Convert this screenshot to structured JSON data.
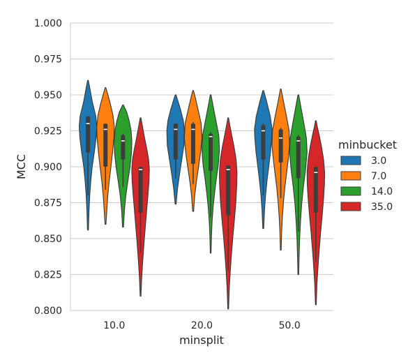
{
  "chart_data": {
    "type": "violin",
    "xlabel": "minsplit",
    "ylabel": "MCC",
    "ylim": [
      0.8,
      1.0
    ],
    "yticks": [
      "0.800",
      "0.825",
      "0.850",
      "0.875",
      "0.900",
      "0.925",
      "0.950",
      "0.975",
      "1.000"
    ],
    "categories": [
      "10.0",
      "20.0",
      "50.0"
    ],
    "grid": "horizontal",
    "legend": {
      "title": "minbucket",
      "position": "right"
    },
    "series": [
      {
        "name": "3.0",
        "color": "#1f77b4",
        "groups": [
          {
            "min": 0.856,
            "max": 0.96,
            "q1": 0.91,
            "median": 0.93,
            "q3": 0.935,
            "wlo": 0.88,
            "whi": 0.935,
            "shape": [
              [
                0.856,
                0.05
              ],
              [
                0.87,
                0.12
              ],
              [
                0.88,
                0.2
              ],
              [
                0.89,
                0.32
              ],
              [
                0.9,
                0.48
              ],
              [
                0.91,
                0.72
              ],
              [
                0.92,
                0.92
              ],
              [
                0.928,
                1.0
              ],
              [
                0.935,
                0.9
              ],
              [
                0.945,
                0.5
              ],
              [
                0.955,
                0.2
              ],
              [
                0.96,
                0.04
              ]
            ]
          },
          {
            "min": 0.874,
            "max": 0.95,
            "q1": 0.905,
            "median": 0.926,
            "q3": 0.93,
            "wlo": 0.892,
            "whi": 0.93,
            "shape": [
              [
                0.874,
                0.05
              ],
              [
                0.885,
                0.22
              ],
              [
                0.895,
                0.45
              ],
              [
                0.905,
                0.7
              ],
              [
                0.915,
                0.95
              ],
              [
                0.925,
                1.0
              ],
              [
                0.932,
                0.88
              ],
              [
                0.94,
                0.55
              ],
              [
                0.946,
                0.25
              ],
              [
                0.95,
                0.04
              ]
            ]
          },
          {
            "min": 0.857,
            "max": 0.953,
            "q1": 0.905,
            "median": 0.925,
            "q3": 0.929,
            "wlo": 0.88,
            "whi": 0.93,
            "shape": [
              [
                0.857,
                0.05
              ],
              [
                0.87,
                0.14
              ],
              [
                0.88,
                0.26
              ],
              [
                0.89,
                0.42
              ],
              [
                0.9,
                0.62
              ],
              [
                0.91,
                0.82
              ],
              [
                0.92,
                0.96
              ],
              [
                0.926,
                1.0
              ],
              [
                0.935,
                0.8
              ],
              [
                0.945,
                0.4
              ],
              [
                0.953,
                0.04
              ]
            ]
          }
        ]
      },
      {
        "name": "7.0",
        "color": "#ff7f0e",
        "groups": [
          {
            "min": 0.86,
            "max": 0.955,
            "q1": 0.9,
            "median": 0.926,
            "q3": 0.93,
            "wlo": 0.884,
            "whi": 0.93,
            "shape": [
              [
                0.86,
                0.05
              ],
              [
                0.87,
                0.15
              ],
              [
                0.88,
                0.26
              ],
              [
                0.89,
                0.42
              ],
              [
                0.9,
                0.62
              ],
              [
                0.91,
                0.8
              ],
              [
                0.92,
                0.96
              ],
              [
                0.928,
                1.0
              ],
              [
                0.936,
                0.85
              ],
              [
                0.945,
                0.5
              ],
              [
                0.955,
                0.04
              ]
            ]
          },
          {
            "min": 0.869,
            "max": 0.953,
            "q1": 0.902,
            "median": 0.926,
            "q3": 0.93,
            "wlo": 0.888,
            "whi": 0.931,
            "shape": [
              [
                0.869,
                0.05
              ],
              [
                0.88,
                0.18
              ],
              [
                0.89,
                0.38
              ],
              [
                0.9,
                0.62
              ],
              [
                0.91,
                0.85
              ],
              [
                0.92,
                1.0
              ],
              [
                0.93,
                0.92
              ],
              [
                0.94,
                0.55
              ],
              [
                0.948,
                0.25
              ],
              [
                0.953,
                0.04
              ]
            ]
          },
          {
            "min": 0.842,
            "max": 0.954,
            "q1": 0.903,
            "median": 0.92,
            "q3": 0.926,
            "wlo": 0.878,
            "whi": 0.927,
            "shape": [
              [
                0.842,
                0.04
              ],
              [
                0.855,
                0.1
              ],
              [
                0.865,
                0.18
              ],
              [
                0.875,
                0.3
              ],
              [
                0.885,
                0.45
              ],
              [
                0.895,
                0.65
              ],
              [
                0.905,
                0.85
              ],
              [
                0.915,
                1.0
              ],
              [
                0.925,
                0.95
              ],
              [
                0.935,
                0.65
              ],
              [
                0.945,
                0.32
              ],
              [
                0.954,
                0.04
              ]
            ]
          }
        ]
      },
      {
        "name": "14.0",
        "color": "#2ca02c",
        "groups": [
          {
            "min": 0.858,
            "max": 0.943,
            "q1": 0.905,
            "median": 0.918,
            "q3": 0.922,
            "wlo": 0.886,
            "whi": 0.923,
            "shape": [
              [
                0.858,
                0.05
              ],
              [
                0.87,
                0.16
              ],
              [
                0.88,
                0.32
              ],
              [
                0.89,
                0.55
              ],
              [
                0.9,
                0.8
              ],
              [
                0.91,
                0.97
              ],
              [
                0.918,
                1.0
              ],
              [
                0.925,
                0.92
              ],
              [
                0.932,
                0.7
              ],
              [
                0.938,
                0.42
              ],
              [
                0.943,
                0.04
              ]
            ]
          },
          {
            "min": 0.84,
            "max": 0.95,
            "q1": 0.897,
            "median": 0.921,
            "q3": 0.923,
            "wlo": 0.865,
            "whi": 0.924,
            "shape": [
              [
                0.84,
                0.04
              ],
              [
                0.852,
                0.09
              ],
              [
                0.862,
                0.16
              ],
              [
                0.872,
                0.28
              ],
              [
                0.882,
                0.45
              ],
              [
                0.892,
                0.65
              ],
              [
                0.902,
                0.88
              ],
              [
                0.912,
                1.0
              ],
              [
                0.922,
                0.92
              ],
              [
                0.932,
                0.6
              ],
              [
                0.942,
                0.28
              ],
              [
                0.95,
                0.04
              ]
            ]
          },
          {
            "min": 0.825,
            "max": 0.95,
            "q1": 0.892,
            "median": 0.918,
            "q3": 0.921,
            "wlo": 0.855,
            "whi": 0.922,
            "shape": [
              [
                0.825,
                0.04
              ],
              [
                0.838,
                0.09
              ],
              [
                0.85,
                0.15
              ],
              [
                0.862,
                0.25
              ],
              [
                0.874,
                0.38
              ],
              [
                0.886,
                0.58
              ],
              [
                0.898,
                0.82
              ],
              [
                0.91,
                1.0
              ],
              [
                0.92,
                0.92
              ],
              [
                0.932,
                0.58
              ],
              [
                0.942,
                0.28
              ],
              [
                0.95,
                0.04
              ]
            ]
          }
        ]
      },
      {
        "name": "35.0",
        "color": "#d62728",
        "groups": [
          {
            "min": 0.81,
            "max": 0.934,
            "q1": 0.868,
            "median": 0.898,
            "q3": 0.9,
            "wlo": 0.84,
            "whi": 0.9,
            "shape": [
              [
                0.81,
                0.04
              ],
              [
                0.822,
                0.12
              ],
              [
                0.834,
                0.24
              ],
              [
                0.846,
                0.38
              ],
              [
                0.858,
                0.54
              ],
              [
                0.87,
                0.7
              ],
              [
                0.88,
                0.84
              ],
              [
                0.89,
                0.96
              ],
              [
                0.898,
                1.0
              ],
              [
                0.905,
                0.92
              ],
              [
                0.912,
                0.72
              ],
              [
                0.92,
                0.46
              ],
              [
                0.928,
                0.22
              ],
              [
                0.934,
                0.04
              ]
            ]
          },
          {
            "min": 0.801,
            "max": 0.934,
            "q1": 0.866,
            "median": 0.898,
            "q3": 0.901,
            "wlo": 0.828,
            "whi": 0.901,
            "shape": [
              [
                0.801,
                0.04
              ],
              [
                0.815,
                0.12
              ],
              [
                0.828,
                0.24
              ],
              [
                0.84,
                0.38
              ],
              [
                0.852,
                0.54
              ],
              [
                0.864,
                0.72
              ],
              [
                0.876,
                0.88
              ],
              [
                0.888,
                0.98
              ],
              [
                0.896,
                1.0
              ],
              [
                0.905,
                0.9
              ],
              [
                0.914,
                0.66
              ],
              [
                0.922,
                0.4
              ],
              [
                0.929,
                0.18
              ],
              [
                0.934,
                0.04
              ]
            ]
          },
          {
            "min": 0.804,
            "max": 0.932,
            "q1": 0.868,
            "median": 0.896,
            "q3": 0.9,
            "wlo": 0.834,
            "whi": 0.9,
            "shape": [
              [
                0.804,
                0.04
              ],
              [
                0.818,
                0.12
              ],
              [
                0.83,
                0.24
              ],
              [
                0.842,
                0.38
              ],
              [
                0.854,
                0.54
              ],
              [
                0.866,
                0.72
              ],
              [
                0.878,
                0.88
              ],
              [
                0.888,
                0.98
              ],
              [
                0.896,
                1.0
              ],
              [
                0.905,
                0.88
              ],
              [
                0.914,
                0.64
              ],
              [
                0.922,
                0.38
              ],
              [
                0.928,
                0.16
              ],
              [
                0.932,
                0.04
              ]
            ]
          }
        ]
      }
    ]
  }
}
